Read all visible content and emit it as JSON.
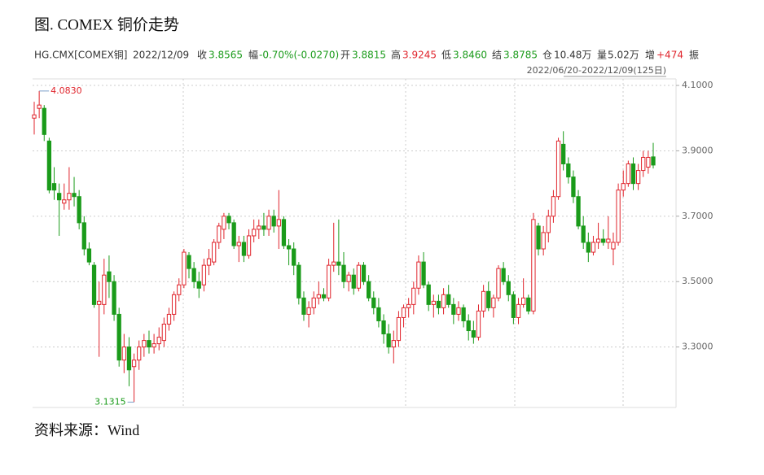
{
  "chart_data": {
    "type": "candlestick",
    "title": "图. COMEX 铜价走势",
    "source": "资料来源：Wind",
    "quote": [
      {
        "label": "HG.CMX[COMEX铜]"
      },
      {
        "label": "2022/12/09"
      },
      {
        "label": "收",
        "value": "3.8565",
        "color": "#1a9b1a"
      },
      {
        "label": "幅",
        "value": "-0.70%(-0.0270)",
        "color": "#1a9b1a"
      },
      {
        "label": "开",
        "value": "3.8815",
        "color": "#1a9b1a"
      },
      {
        "label": "高",
        "value": "3.9245",
        "color": "#e0242c"
      },
      {
        "label": "低",
        "value": "3.8460",
        "color": "#1a9b1a"
      },
      {
        "label": "结",
        "value": "3.8785",
        "color": "#1a9b1a"
      },
      {
        "label": "仓",
        "value": "10.48万",
        "color": "#333333"
      },
      {
        "label": "量",
        "value": "5.02万",
        "color": "#333333"
      },
      {
        "label": "增",
        "value": "+474",
        "color": "#e0242c"
      },
      {
        "label": "振"
      }
    ],
    "date_range": "2022/06/20-2022/12/09(125日)",
    "max_label": "4.0830",
    "min_label": "3.1315",
    "up_color": "#e0242c",
    "down_color": "#1a9b1a",
    "ylim": [
      3.115,
      4.12
    ],
    "yticks": [
      {
        "value": 3.3,
        "label": "3.3000"
      },
      {
        "value": 3.5,
        "label": "3.5000"
      },
      {
        "value": 3.7,
        "label": "3.7000"
      },
      {
        "value": 3.9,
        "label": "3.9000"
      },
      {
        "value": 4.1,
        "label": "4.1000"
      }
    ],
    "grid": true,
    "candles": [
      [
        4.0,
        4.05,
        3.95,
        4.01
      ],
      [
        4.03,
        4.083,
        4.0,
        4.04
      ],
      [
        4.03,
        4.04,
        3.93,
        3.95
      ],
      [
        3.93,
        3.94,
        3.77,
        3.78
      ],
      [
        3.8,
        3.85,
        3.75,
        3.78
      ],
      [
        3.77,
        3.8,
        3.64,
        3.75
      ],
      [
        3.74,
        3.8,
        3.72,
        3.75
      ],
      [
        3.75,
        3.85,
        3.72,
        3.77
      ],
      [
        3.77,
        3.82,
        3.73,
        3.76
      ],
      [
        3.76,
        3.78,
        3.66,
        3.68
      ],
      [
        3.68,
        3.7,
        3.58,
        3.6
      ],
      [
        3.6,
        3.62,
        3.55,
        3.56
      ],
      [
        3.55,
        3.56,
        3.42,
        3.43
      ],
      [
        3.43,
        3.5,
        3.27,
        3.44
      ],
      [
        3.43,
        3.57,
        3.4,
        3.52
      ],
      [
        3.53,
        3.58,
        3.45,
        3.5
      ],
      [
        3.5,
        3.52,
        3.38,
        3.4
      ],
      [
        3.4,
        3.42,
        3.24,
        3.26
      ],
      [
        3.26,
        3.34,
        3.22,
        3.3
      ],
      [
        3.3,
        3.33,
        3.18,
        3.23
      ],
      [
        3.24,
        3.28,
        3.1315,
        3.26
      ],
      [
        3.26,
        3.32,
        3.23,
        3.3
      ],
      [
        3.3,
        3.34,
        3.27,
        3.32
      ],
      [
        3.32,
        3.35,
        3.28,
        3.3
      ],
      [
        3.3,
        3.34,
        3.28,
        3.31
      ],
      [
        3.31,
        3.36,
        3.29,
        3.33
      ],
      [
        3.32,
        3.39,
        3.3,
        3.37
      ],
      [
        3.37,
        3.42,
        3.35,
        3.4
      ],
      [
        3.4,
        3.47,
        3.38,
        3.46
      ],
      [
        3.46,
        3.51,
        3.44,
        3.49
      ],
      [
        3.49,
        3.6,
        3.48,
        3.59
      ],
      [
        3.58,
        3.59,
        3.51,
        3.54
      ],
      [
        3.54,
        3.56,
        3.48,
        3.5
      ],
      [
        3.5,
        3.53,
        3.45,
        3.48
      ],
      [
        3.49,
        3.57,
        3.47,
        3.55
      ],
      [
        3.55,
        3.6,
        3.52,
        3.57
      ],
      [
        3.56,
        3.63,
        3.55,
        3.62
      ],
      [
        3.62,
        3.68,
        3.6,
        3.67
      ],
      [
        3.66,
        3.71,
        3.63,
        3.7
      ],
      [
        3.7,
        3.71,
        3.66,
        3.68
      ],
      [
        3.68,
        3.69,
        3.6,
        3.61
      ],
      [
        3.61,
        3.64,
        3.56,
        3.62
      ],
      [
        3.62,
        3.64,
        3.56,
        3.58
      ],
      [
        3.58,
        3.66,
        3.57,
        3.64
      ],
      [
        3.64,
        3.69,
        3.62,
        3.66
      ],
      [
        3.66,
        3.69,
        3.63,
        3.67
      ],
      [
        3.67,
        3.71,
        3.64,
        3.66
      ],
      [
        3.66,
        3.72,
        3.64,
        3.7
      ],
      [
        3.7,
        3.72,
        3.65,
        3.67
      ],
      [
        3.67,
        3.78,
        3.6,
        3.69
      ],
      [
        3.69,
        3.7,
        3.6,
        3.61
      ],
      [
        3.61,
        3.63,
        3.55,
        3.6
      ],
      [
        3.6,
        3.62,
        3.52,
        3.55
      ],
      [
        3.55,
        3.56,
        3.43,
        3.45
      ],
      [
        3.45,
        3.47,
        3.38,
        3.4
      ],
      [
        3.4,
        3.44,
        3.36,
        3.42
      ],
      [
        3.42,
        3.47,
        3.4,
        3.45
      ],
      [
        3.45,
        3.5,
        3.43,
        3.46
      ],
      [
        3.46,
        3.48,
        3.44,
        3.45
      ],
      [
        3.45,
        3.57,
        3.44,
        3.55
      ],
      [
        3.55,
        3.68,
        3.53,
        3.56
      ],
      [
        3.56,
        3.69,
        3.52,
        3.55
      ],
      [
        3.55,
        3.59,
        3.48,
        3.5
      ],
      [
        3.5,
        3.53,
        3.47,
        3.52
      ],
      [
        3.52,
        3.54,
        3.46,
        3.48
      ],
      [
        3.48,
        3.56,
        3.47,
        3.55
      ],
      [
        3.55,
        3.56,
        3.49,
        3.5
      ],
      [
        3.5,
        3.52,
        3.44,
        3.45
      ],
      [
        3.45,
        3.47,
        3.4,
        3.42
      ],
      [
        3.42,
        3.45,
        3.36,
        3.38
      ],
      [
        3.38,
        3.4,
        3.31,
        3.34
      ],
      [
        3.34,
        3.37,
        3.28,
        3.3
      ],
      [
        3.3,
        3.35,
        3.25,
        3.32
      ],
      [
        3.32,
        3.41,
        3.3,
        3.39
      ],
      [
        3.39,
        3.43,
        3.36,
        3.42
      ],
      [
        3.42,
        3.45,
        3.39,
        3.43
      ],
      [
        3.43,
        3.5,
        3.4,
        3.48
      ],
      [
        3.48,
        3.58,
        3.46,
        3.56
      ],
      [
        3.56,
        3.59,
        3.48,
        3.49
      ],
      [
        3.49,
        3.5,
        3.41,
        3.43
      ],
      [
        3.43,
        3.46,
        3.39,
        3.44
      ],
      [
        3.44,
        3.46,
        3.4,
        3.42
      ],
      [
        3.42,
        3.48,
        3.4,
        3.46
      ],
      [
        3.46,
        3.49,
        3.42,
        3.43
      ],
      [
        3.43,
        3.45,
        3.37,
        3.4
      ],
      [
        3.4,
        3.44,
        3.38,
        3.42
      ],
      [
        3.42,
        3.43,
        3.36,
        3.38
      ],
      [
        3.38,
        3.4,
        3.32,
        3.35
      ],
      [
        3.35,
        3.38,
        3.31,
        3.33
      ],
      [
        3.33,
        3.43,
        3.32,
        3.41
      ],
      [
        3.41,
        3.49,
        3.39,
        3.47
      ],
      [
        3.47,
        3.5,
        3.41,
        3.42
      ],
      [
        3.42,
        3.46,
        3.39,
        3.45
      ],
      [
        3.45,
        3.55,
        3.44,
        3.54
      ],
      [
        3.54,
        3.56,
        3.49,
        3.5
      ],
      [
        3.5,
        3.52,
        3.44,
        3.46
      ],
      [
        3.46,
        3.47,
        3.37,
        3.39
      ],
      [
        3.39,
        3.45,
        3.37,
        3.43
      ],
      [
        3.43,
        3.51,
        3.42,
        3.45
      ],
      [
        3.45,
        3.46,
        3.4,
        3.41
      ],
      [
        3.41,
        3.71,
        3.4,
        3.69
      ],
      [
        3.67,
        3.68,
        3.58,
        3.6
      ],
      [
        3.6,
        3.67,
        3.58,
        3.65
      ],
      [
        3.65,
        3.72,
        3.62,
        3.7
      ],
      [
        3.7,
        3.78,
        3.68,
        3.76
      ],
      [
        3.76,
        3.94,
        3.75,
        3.93
      ],
      [
        3.92,
        3.96,
        3.84,
        3.86
      ],
      [
        3.86,
        3.88,
        3.8,
        3.82
      ],
      [
        3.82,
        3.84,
        3.74,
        3.76
      ],
      [
        3.76,
        3.78,
        3.66,
        3.67
      ],
      [
        3.67,
        3.7,
        3.6,
        3.62
      ],
      [
        3.62,
        3.65,
        3.56,
        3.59
      ],
      [
        3.59,
        3.64,
        3.58,
        3.62
      ],
      [
        3.62,
        3.68,
        3.6,
        3.63
      ],
      [
        3.63,
        3.66,
        3.61,
        3.62
      ],
      [
        3.62,
        3.7,
        3.6,
        3.63
      ],
      [
        3.6,
        3.65,
        3.55,
        3.62
      ],
      [
        3.62,
        3.8,
        3.61,
        3.78
      ],
      [
        3.78,
        3.84,
        3.76,
        3.8
      ],
      [
        3.8,
        3.87,
        3.79,
        3.86
      ],
      [
        3.86,
        3.88,
        3.78,
        3.8
      ],
      [
        3.8,
        3.86,
        3.78,
        3.84
      ],
      [
        3.84,
        3.9,
        3.82,
        3.88
      ],
      [
        3.85,
        3.9,
        3.83,
        3.88
      ],
      [
        3.8815,
        3.9245,
        3.846,
        3.8565
      ]
    ]
  }
}
